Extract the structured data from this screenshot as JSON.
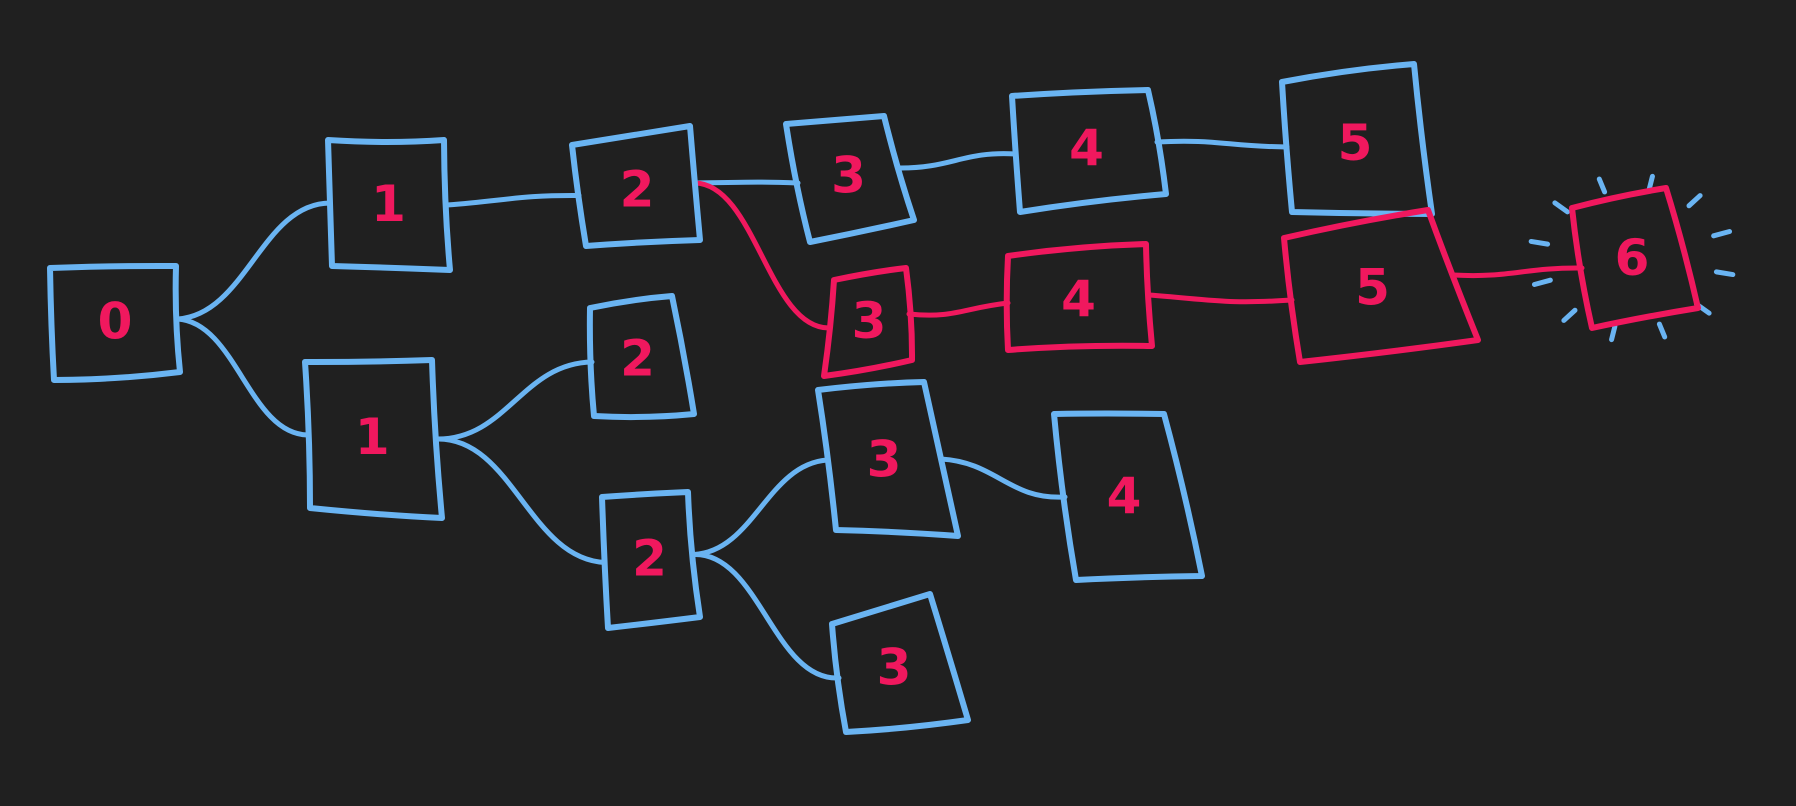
{
  "colors": {
    "background": "#202020",
    "tree": "#6ab4f2",
    "highlight": "#f0185e",
    "label": "#f0185e"
  },
  "nodes": [
    {
      "id": "n0",
      "label": "0",
      "color": "tree"
    },
    {
      "id": "n1a",
      "label": "1",
      "color": "tree"
    },
    {
      "id": "n1b",
      "label": "1",
      "color": "tree"
    },
    {
      "id": "n2a",
      "label": "2",
      "color": "tree"
    },
    {
      "id": "n2b",
      "label": "2",
      "color": "tree"
    },
    {
      "id": "n2c",
      "label": "2",
      "color": "tree"
    },
    {
      "id": "n3a",
      "label": "3",
      "color": "tree"
    },
    {
      "id": "n3r",
      "label": "3",
      "color": "highlight"
    },
    {
      "id": "n3c",
      "label": "3",
      "color": "tree"
    },
    {
      "id": "n3d",
      "label": "3",
      "color": "tree"
    },
    {
      "id": "n4a",
      "label": "4",
      "color": "tree"
    },
    {
      "id": "n4r",
      "label": "4",
      "color": "highlight"
    },
    {
      "id": "n4c",
      "label": "4",
      "color": "tree"
    },
    {
      "id": "n5a",
      "label": "5",
      "color": "tree"
    },
    {
      "id": "n5r",
      "label": "5",
      "color": "highlight"
    },
    {
      "id": "n6",
      "label": "6",
      "color": "highlight",
      "sparkle": true
    }
  ],
  "edges": [
    {
      "from": "n0",
      "to": "n1a",
      "color": "tree"
    },
    {
      "from": "n0",
      "to": "n1b",
      "color": "tree"
    },
    {
      "from": "n1a",
      "to": "n2a",
      "color": "tree"
    },
    {
      "from": "n1b",
      "to": "n2b",
      "color": "tree"
    },
    {
      "from": "n1b",
      "to": "n2c",
      "color": "tree"
    },
    {
      "from": "n2a",
      "to": "n3a",
      "color": "tree"
    },
    {
      "from": "n2a",
      "to": "n3r",
      "color": "highlight"
    },
    {
      "from": "n2c",
      "to": "n3c",
      "color": "tree"
    },
    {
      "from": "n2c",
      "to": "n3d",
      "color": "tree"
    },
    {
      "from": "n3a",
      "to": "n4a",
      "color": "tree"
    },
    {
      "from": "n3r",
      "to": "n4r",
      "color": "highlight"
    },
    {
      "from": "n3c",
      "to": "n4c",
      "color": "tree"
    },
    {
      "from": "n4a",
      "to": "n5a",
      "color": "tree"
    },
    {
      "from": "n4r",
      "to": "n5r",
      "color": "highlight"
    },
    {
      "from": "n5r",
      "to": "n6",
      "color": "highlight"
    }
  ]
}
